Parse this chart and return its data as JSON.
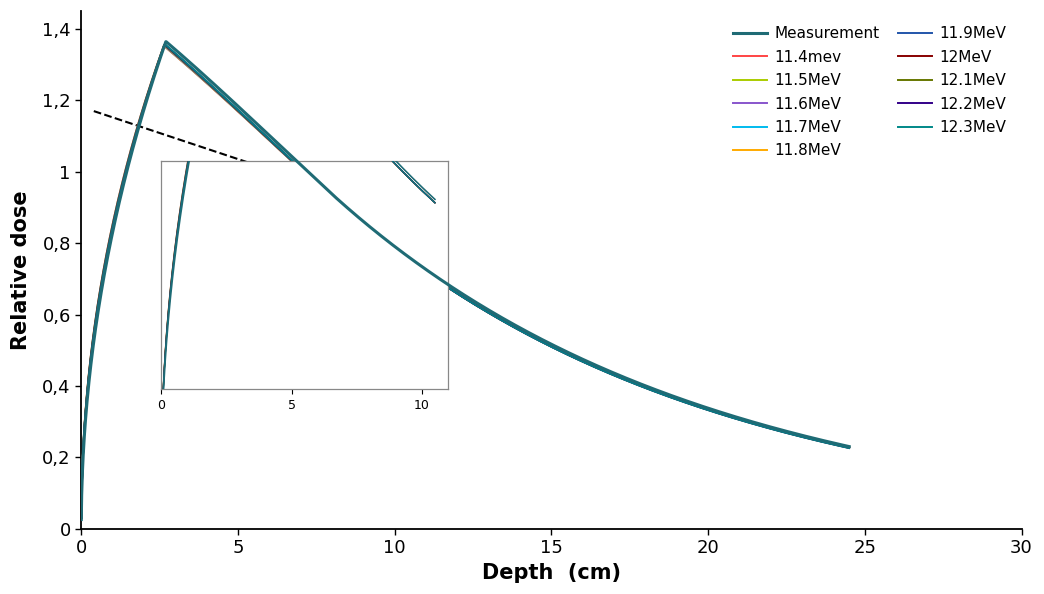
{
  "title": "",
  "xlabel": "Depth  (cm)",
  "ylabel": "Relative dose",
  "xlim": [
    0,
    30
  ],
  "ylim": [
    0,
    1.45
  ],
  "xticks": [
    0,
    5,
    10,
    15,
    20,
    25,
    30
  ],
  "yticks": [
    0,
    0.2,
    0.4,
    0.6,
    0.8,
    1.0,
    1.2,
    1.4
  ],
  "ytick_labels": [
    "0",
    "0,2",
    "0,4",
    "0,6",
    "0,8",
    "1",
    "1,2",
    "1,4"
  ],
  "legend_entries": [
    {
      "label": "Measurement",
      "color": "#1F6B75",
      "lw": 2.2
    },
    {
      "label": "11.4mev",
      "color": "#FF4444",
      "lw": 1.4
    },
    {
      "label": "11.5MeV",
      "color": "#AACC00",
      "lw": 1.4
    },
    {
      "label": "11.6MeV",
      "color": "#8855CC",
      "lw": 1.4
    },
    {
      "label": "11.7MeV",
      "color": "#00BBEE",
      "lw": 1.4
    },
    {
      "label": "11.8MeV",
      "color": "#FFAA00",
      "lw": 1.4
    },
    {
      "label": "11.9MeV",
      "color": "#2255AA",
      "lw": 1.4
    },
    {
      "label": "12MeV",
      "color": "#880000",
      "lw": 1.4
    },
    {
      "label": "12.1MeV",
      "color": "#667700",
      "lw": 1.4
    },
    {
      "label": "12.2MeV",
      "color": "#330088",
      "lw": 1.4
    },
    {
      "label": "12.3MeV",
      "color": "#008888",
      "lw": 1.4
    }
  ],
  "background_color": "#FFFFFF",
  "figsize": [
    10.44,
    5.94
  ],
  "dpi": 100
}
